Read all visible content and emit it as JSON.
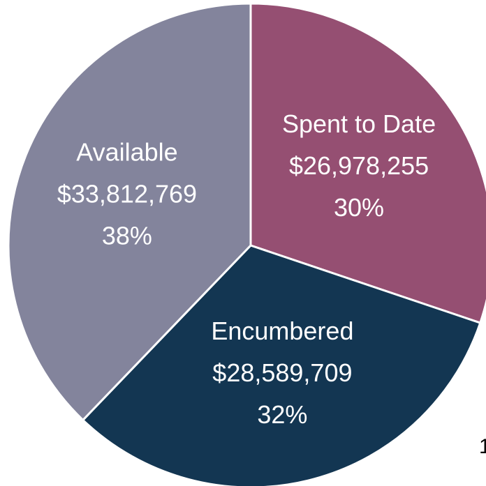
{
  "chart_data": {
    "type": "pie",
    "categories": [
      "Spent to Date",
      "Encumbered",
      "Available"
    ],
    "values": [
      26978255,
      28589709,
      33812769
    ],
    "value_labels": [
      "$26,978,255",
      "$28,589,709",
      "$33,812,769"
    ],
    "percent_labels": [
      "30%",
      "32%",
      "38%"
    ],
    "colors": [
      "#954f72",
      "#133652",
      "#83849c"
    ],
    "page_number": "1"
  }
}
